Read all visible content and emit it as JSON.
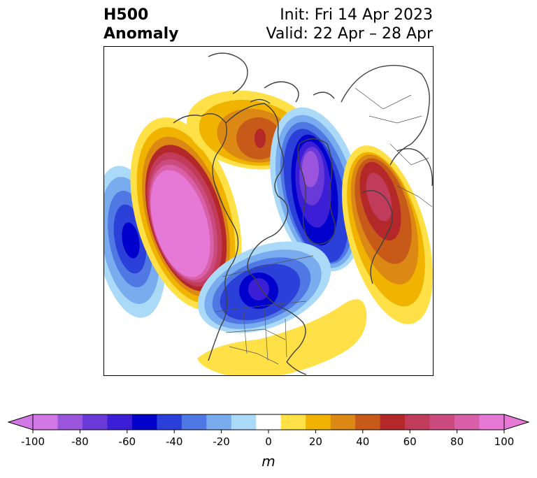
{
  "header": {
    "title_line1": "H500",
    "title_line2": "Anomaly",
    "init_text": "Init: Fri 14 Apr 2023",
    "valid_text": "Valid: 22 Apr – 28 Apr"
  },
  "colorbar": {
    "unit": "m",
    "ticks": [
      "-100",
      "-80",
      "-60",
      "-40",
      "-20",
      "0",
      "20",
      "40",
      "60",
      "80",
      "100"
    ],
    "bins": [
      {
        "range": "-100 to -90",
        "color": "#d278e6"
      },
      {
        "range": "-90 to -80",
        "color": "#9b55dc"
      },
      {
        "range": "-80 to -70",
        "color": "#6a3ad8"
      },
      {
        "range": "-70 to -60",
        "color": "#3c1ed6"
      },
      {
        "range": "-60 to -50",
        "color": "#0000cd"
      },
      {
        "range": "-50 to -40",
        "color": "#2b3fd9"
      },
      {
        "range": "-40 to -30",
        "color": "#4f78e4"
      },
      {
        "range": "-30 to -20",
        "color": "#78acee"
      },
      {
        "range": "-20 to -10",
        "color": "#aadaf8"
      },
      {
        "range": "-10 to 10",
        "color": "#ffffff"
      },
      {
        "range": "10 to 20",
        "color": "#ffe046"
      },
      {
        "range": "20 to 30",
        "color": "#f0b400"
      },
      {
        "range": "30 to 40",
        "color": "#dc8814"
      },
      {
        "range": "40 to 50",
        "color": "#c85a19"
      },
      {
        "range": "50 to 60",
        "color": "#b4282a"
      },
      {
        "range": "60 to 70",
        "color": "#c13c5a"
      },
      {
        "range": "70 to 80",
        "color": "#cc4b7f"
      },
      {
        "range": "80 to 90",
        "color": "#d85fa8"
      },
      {
        "range": "90 to 100",
        "color": "#e678d6"
      }
    ],
    "extend_low_color": "#d278e6",
    "extend_high_color": "#e678d6"
  },
  "map": {
    "projection": "north-polar-stereographic",
    "field": "500 hPa geopotential height anomaly",
    "features": [
      "positive anomaly Gulf of Alaska / NE Pacific",
      "negative anomaly central Canada",
      "negative anomaly Greenland / Arctic",
      "positive anomaly Scandinavia / N Europe",
      "positive anomaly Alaska / Bering",
      "negative anomaly N Pacific",
      "positive anomaly SE United States / W Atlantic"
    ]
  }
}
